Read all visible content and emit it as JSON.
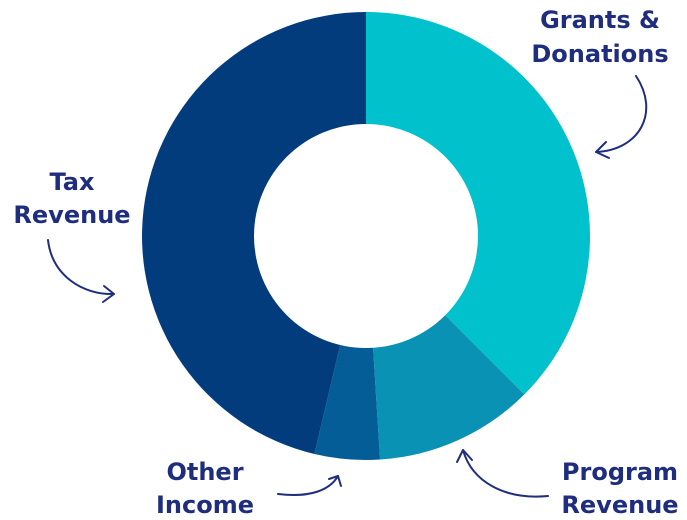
{
  "chart_data": {
    "type": "pie",
    "variant": "donut",
    "title": "",
    "legend": "none",
    "slices": [
      {
        "label_lines": [
          "Grants &",
          "Donations"
        ],
        "value": 37.5,
        "color": "#00c1cc"
      },
      {
        "label_lines": [
          "Program",
          "Revenue"
        ],
        "value": 11.5,
        "color": "#0a92b5"
      },
      {
        "label_lines": [
          "Other",
          "Income"
        ],
        "value": 4.7,
        "color": "#045d97"
      },
      {
        "label_lines": [
          "Tax",
          "Revenue"
        ],
        "value": 46.3,
        "color": "#023c7d"
      }
    ]
  }
}
